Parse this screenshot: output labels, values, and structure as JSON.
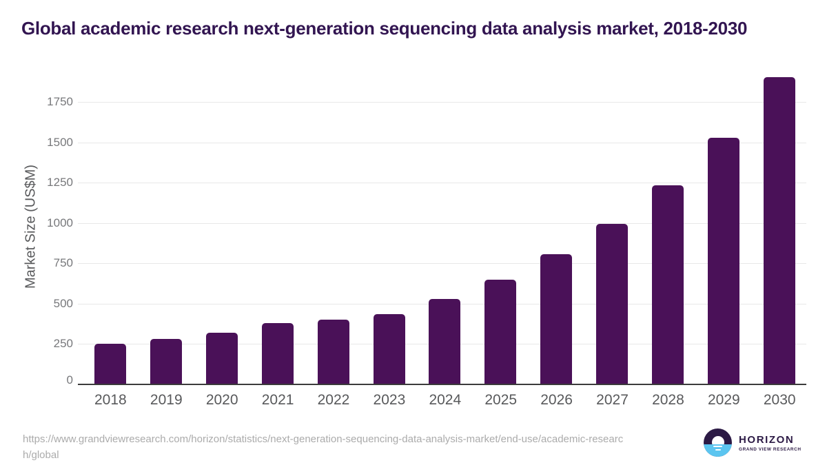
{
  "title": "Global academic research next-generation sequencing data analysis market, 2018-2030",
  "source": {
    "line1": "https://www.grandviewresearch.com/horizon/statistics/next-generation-sequencing-data-analysis-market/end-use/academic-researc",
    "line2": "h/global"
  },
  "logo": {
    "brand": "HORIZON",
    "tagline": "GRAND VIEW RESEARCH"
  },
  "colors": {
    "bar": "#4a1158",
    "title_text": "#321551",
    "axis_text": "#58595b",
    "tick_text": "#77787b",
    "gridline": "#e8e8e8",
    "baseline": "#3b3b3b",
    "url_text": "#ababab",
    "logo_purple": "#2c1a45",
    "logo_blue": "#5bc5f0"
  },
  "chart_data": {
    "type": "bar",
    "title": "Global academic research next-generation sequencing data analysis market, 2018-2030",
    "categories": [
      "2018",
      "2019",
      "2020",
      "2021",
      "2022",
      "2023",
      "2024",
      "2025",
      "2026",
      "2027",
      "2028",
      "2029",
      "2030"
    ],
    "values": [
      250,
      284,
      320,
      382,
      402,
      434,
      531,
      648,
      806,
      995,
      1232,
      1528,
      1903
    ],
    "xlabel": "",
    "ylabel": "Market Size (US$M)",
    "ylim": [
      0,
      1955
    ],
    "yticks": [
      0,
      250,
      500,
      750,
      1000,
      1250,
      1500,
      1750
    ],
    "grid": true,
    "legend": false,
    "bar_color": "#4a1158"
  }
}
